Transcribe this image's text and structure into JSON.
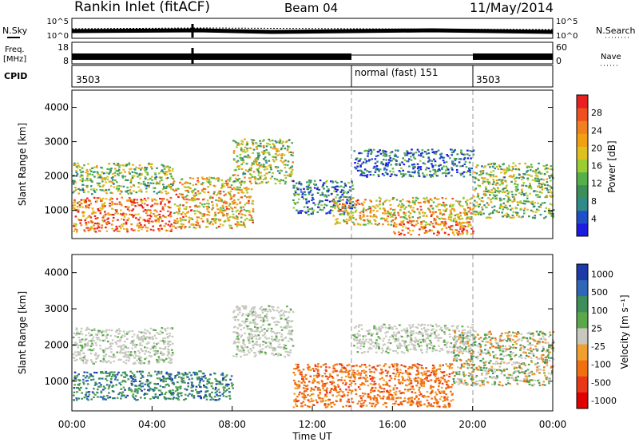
{
  "header": {
    "station": "Rankin Inlet (fitACF)",
    "beam": "Beam 04",
    "date": "11/May/2014"
  },
  "top_panels": {
    "noise": {
      "left_label": "N.Sky",
      "right_label": "N.Search",
      "left_ticks": [
        "10^5",
        "10^0"
      ],
      "right_ticks": [
        "10^5",
        "10^0"
      ]
    },
    "freq": {
      "left_label_1": "Freq.",
      "left_label_2": "[MHz]",
      "right_label": "Nave",
      "left_ticks": [
        "18",
        "8"
      ],
      "right_ticks": [
        "60",
        "0"
      ]
    },
    "cpid": {
      "label": "CPID",
      "segments": [
        {
          "label": "3503",
          "start_hour": 0
        },
        {
          "label": "normal (fast) 151",
          "start_hour": 14
        },
        {
          "label": "3503",
          "start_hour": 20
        }
      ]
    }
  },
  "chart_data": [
    {
      "type": "heatmap",
      "name": "power-panel",
      "ylabel": "Slant Range [km]",
      "yticks": [
        "1000",
        "2000",
        "3000",
        "4000"
      ],
      "ylim": [
        180,
        4500
      ],
      "xlim": [
        0,
        24
      ],
      "colorbar": {
        "label": "Power [dB]",
        "ticks": [
          "4",
          "8",
          "12",
          "16",
          "20",
          "24",
          "28"
        ],
        "range": [
          0,
          32
        ],
        "colors": [
          "#1c1ce0",
          "#1f4fc8",
          "#2f8a8a",
          "#3d8f5a",
          "#55b04a",
          "#9acd32",
          "#e0c020",
          "#f0a010",
          "#f08020",
          "#f05020",
          "#e82020"
        ]
      },
      "regions": [
        {
          "x": [
            0,
            5
          ],
          "y": [
            400,
            1400
          ],
          "level": 0.8
        },
        {
          "x": [
            0,
            5
          ],
          "y": [
            1500,
            2400
          ],
          "level": 0.45
        },
        {
          "x": [
            5,
            9
          ],
          "y": [
            500,
            2000
          ],
          "level": 0.65
        },
        {
          "x": [
            8,
            11
          ],
          "y": [
            1800,
            3100
          ],
          "level": 0.5
        },
        {
          "x": [
            11,
            14
          ],
          "y": [
            900,
            1900
          ],
          "level": 0.25
        },
        {
          "x": [
            13,
            20
          ],
          "y": [
            600,
            1400
          ],
          "level": 0.65
        },
        {
          "x": [
            16,
            20
          ],
          "y": [
            300,
            700
          ],
          "level": 0.8
        },
        {
          "x": [
            14,
            20
          ],
          "y": [
            2000,
            2800
          ],
          "level": 0.2
        },
        {
          "x": [
            20,
            24
          ],
          "y": [
            800,
            2400
          ],
          "level": 0.45
        }
      ]
    },
    {
      "type": "heatmap",
      "name": "velocity-panel",
      "ylabel": "Slant Range [km]",
      "xlabel": "Time UT",
      "xticks": [
        "00:00",
        "04:00",
        "08:00",
        "12:00",
        "16:00",
        "20:00",
        "00:00"
      ],
      "yticks": [
        "1000",
        "2000",
        "3000",
        "4000"
      ],
      "ylim": [
        180,
        4500
      ],
      "xlim": [
        0,
        24
      ],
      "colorbar": {
        "label": "Velocity [m s⁻¹]",
        "ticks": [
          "1000",
          "500",
          "100",
          "25",
          "-25",
          "-100",
          "-500",
          "-1000"
        ],
        "colors": [
          "#1c3aa8",
          "#2f66b8",
          "#3d8f5a",
          "#5aa84a",
          "#c8c8c0",
          "#f0a030",
          "#f07010",
          "#e83818",
          "#e00000"
        ]
      },
      "regions": [
        {
          "x": [
            0,
            5
          ],
          "y": [
            1500,
            2500
          ],
          "class": "ground"
        },
        {
          "x": [
            0,
            8
          ],
          "y": [
            500,
            1300
          ],
          "class": "positive"
        },
        {
          "x": [
            8,
            11
          ],
          "y": [
            1700,
            3100
          ],
          "class": "ground"
        },
        {
          "x": [
            11,
            19
          ],
          "y": [
            300,
            1500
          ],
          "class": "negative"
        },
        {
          "x": [
            14,
            20
          ],
          "y": [
            1800,
            2600
          ],
          "class": "ground"
        },
        {
          "x": [
            19,
            24
          ],
          "y": [
            900,
            2400
          ],
          "class": "mixed"
        }
      ]
    }
  ]
}
